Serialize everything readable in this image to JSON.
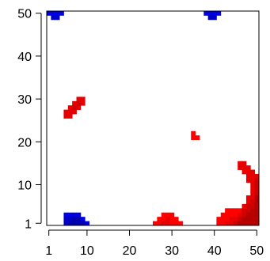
{
  "chart_data": {
    "type": "heatmap",
    "title": "",
    "xlabel": "",
    "ylabel": "",
    "xlim": [
      0.5,
      50.5
    ],
    "ylim": [
      0.5,
      50.5
    ],
    "x_ticks": [
      1,
      10,
      20,
      30,
      40,
      50
    ],
    "y_ticks": [
      1,
      10,
      20,
      30,
      40,
      50
    ],
    "grid": false,
    "legend": "none",
    "colors": {
      "negative": "#0000ff",
      "negative_dark": "#00007a",
      "positive": "#ff0000",
      "positive_dark": "#7a0000"
    },
    "value_range": [
      -1,
      1
    ],
    "clusters": [
      {
        "sign": "negative",
        "cells": [
          [
            1,
            50,
            -0.9
          ],
          [
            2,
            50,
            -0.9
          ],
          [
            3,
            50,
            -0.9
          ],
          [
            4,
            50,
            -0.9
          ],
          [
            2,
            49,
            -0.95
          ],
          [
            3,
            49,
            -0.95
          ],
          [
            5,
            3,
            -0.9
          ],
          [
            6,
            3,
            -0.9
          ],
          [
            7,
            3,
            -0.9
          ],
          [
            8,
            3,
            -0.9
          ],
          [
            5,
            2,
            -0.95
          ],
          [
            6,
            2,
            -0.95
          ],
          [
            7,
            2,
            -1
          ],
          [
            8,
            2,
            -1
          ],
          [
            9,
            2,
            -0.9
          ],
          [
            5,
            1,
            -0.95
          ],
          [
            6,
            1,
            -1
          ],
          [
            7,
            1,
            -1
          ],
          [
            8,
            1,
            -1
          ],
          [
            9,
            1,
            -1
          ],
          [
            10,
            1,
            -0.9
          ],
          [
            38,
            50,
            -0.9
          ],
          [
            39,
            50,
            -0.9
          ],
          [
            40,
            50,
            -0.9
          ],
          [
            41,
            50,
            -0.9
          ],
          [
            39,
            49,
            -0.95
          ],
          [
            40,
            49,
            -0.95
          ]
        ]
      },
      {
        "sign": "positive",
        "cells": [
          [
            8,
            30,
            0.9
          ],
          [
            9,
            30,
            0.9
          ],
          [
            7,
            29,
            0.9
          ],
          [
            8,
            29,
            0.95
          ],
          [
            9,
            29,
            0.9
          ],
          [
            6,
            28,
            0.9
          ],
          [
            7,
            28,
            0.95
          ],
          [
            8,
            28,
            0.9
          ],
          [
            5,
            27,
            0.9
          ],
          [
            6,
            27,
            0.9
          ],
          [
            7,
            27,
            0.9
          ],
          [
            5,
            26,
            0.9
          ],
          [
            6,
            26,
            0.9
          ],
          [
            35,
            22,
            0.85
          ],
          [
            35,
            21,
            0.85
          ],
          [
            36,
            21,
            0.85
          ],
          [
            28,
            3,
            0.85
          ],
          [
            29,
            3,
            0.85
          ],
          [
            30,
            3,
            0.85
          ],
          [
            27,
            2,
            0.85
          ],
          [
            28,
            2,
            0.85
          ],
          [
            29,
            2,
            0.9
          ],
          [
            30,
            2,
            0.85
          ],
          [
            31,
            2,
            0.85
          ],
          [
            26,
            1,
            0.85
          ],
          [
            27,
            1,
            0.85
          ],
          [
            28,
            1,
            0.9
          ],
          [
            29,
            1,
            0.9
          ],
          [
            30,
            1,
            0.85
          ],
          [
            31,
            1,
            0.85
          ],
          [
            32,
            1,
            0.85
          ],
          [
            46,
            15,
            0.9
          ],
          [
            47,
            15,
            0.9
          ],
          [
            46,
            14,
            0.9
          ],
          [
            47,
            14,
            0.9
          ],
          [
            48,
            14,
            0.9
          ],
          [
            47,
            13,
            0.9
          ],
          [
            48,
            13,
            0.9
          ],
          [
            49,
            13,
            0.9
          ],
          [
            48,
            12,
            0.9
          ],
          [
            49,
            12,
            0.9
          ],
          [
            50,
            12,
            0.9
          ],
          [
            48,
            11,
            0.9
          ],
          [
            49,
            11,
            0.9
          ],
          [
            50,
            11,
            0.95
          ],
          [
            49,
            10,
            0.9
          ],
          [
            50,
            10,
            0.95
          ],
          [
            49,
            9,
            0.9
          ],
          [
            50,
            9,
            0.95
          ],
          [
            49,
            8,
            0.9
          ],
          [
            50,
            8,
            0.95
          ],
          [
            48,
            7,
            0.9
          ],
          [
            49,
            7,
            0.9
          ],
          [
            50,
            7,
            1
          ],
          [
            48,
            6,
            0.9
          ],
          [
            49,
            6,
            0.95
          ],
          [
            50,
            6,
            1
          ],
          [
            47,
            5,
            0.9
          ],
          [
            48,
            5,
            0.95
          ],
          [
            49,
            5,
            0.95
          ],
          [
            50,
            5,
            1
          ],
          [
            43,
            4,
            0.85
          ],
          [
            44,
            4,
            0.85
          ],
          [
            45,
            4,
            0.85
          ],
          [
            46,
            4,
            0.85
          ],
          [
            47,
            4,
            0.95
          ],
          [
            48,
            4,
            0.95
          ],
          [
            49,
            4,
            1
          ],
          [
            50,
            4,
            1
          ],
          [
            42,
            3,
            0.85
          ],
          [
            43,
            3,
            0.85
          ],
          [
            44,
            3,
            0.85
          ],
          [
            45,
            3,
            0.85
          ],
          [
            46,
            3,
            0.9
          ],
          [
            47,
            3,
            0.95
          ],
          [
            48,
            3,
            1
          ],
          [
            49,
            3,
            1
          ],
          [
            50,
            3,
            1
          ],
          [
            41,
            2,
            0.85
          ],
          [
            42,
            2,
            0.85
          ],
          [
            43,
            2,
            0.85
          ],
          [
            44,
            2,
            0.9
          ],
          [
            45,
            2,
            0.9
          ],
          [
            46,
            2,
            0.95
          ],
          [
            47,
            2,
            1
          ],
          [
            48,
            2,
            1
          ],
          [
            49,
            2,
            1
          ],
          [
            50,
            2,
            1
          ],
          [
            41,
            1,
            0.85
          ],
          [
            42,
            1,
            0.85
          ],
          [
            43,
            1,
            0.9
          ],
          [
            44,
            1,
            0.9
          ],
          [
            45,
            1,
            0.95
          ],
          [
            46,
            1,
            1
          ],
          [
            47,
            1,
            1
          ],
          [
            48,
            1,
            1
          ],
          [
            49,
            1,
            1
          ],
          [
            50,
            1,
            1
          ]
        ]
      }
    ]
  }
}
